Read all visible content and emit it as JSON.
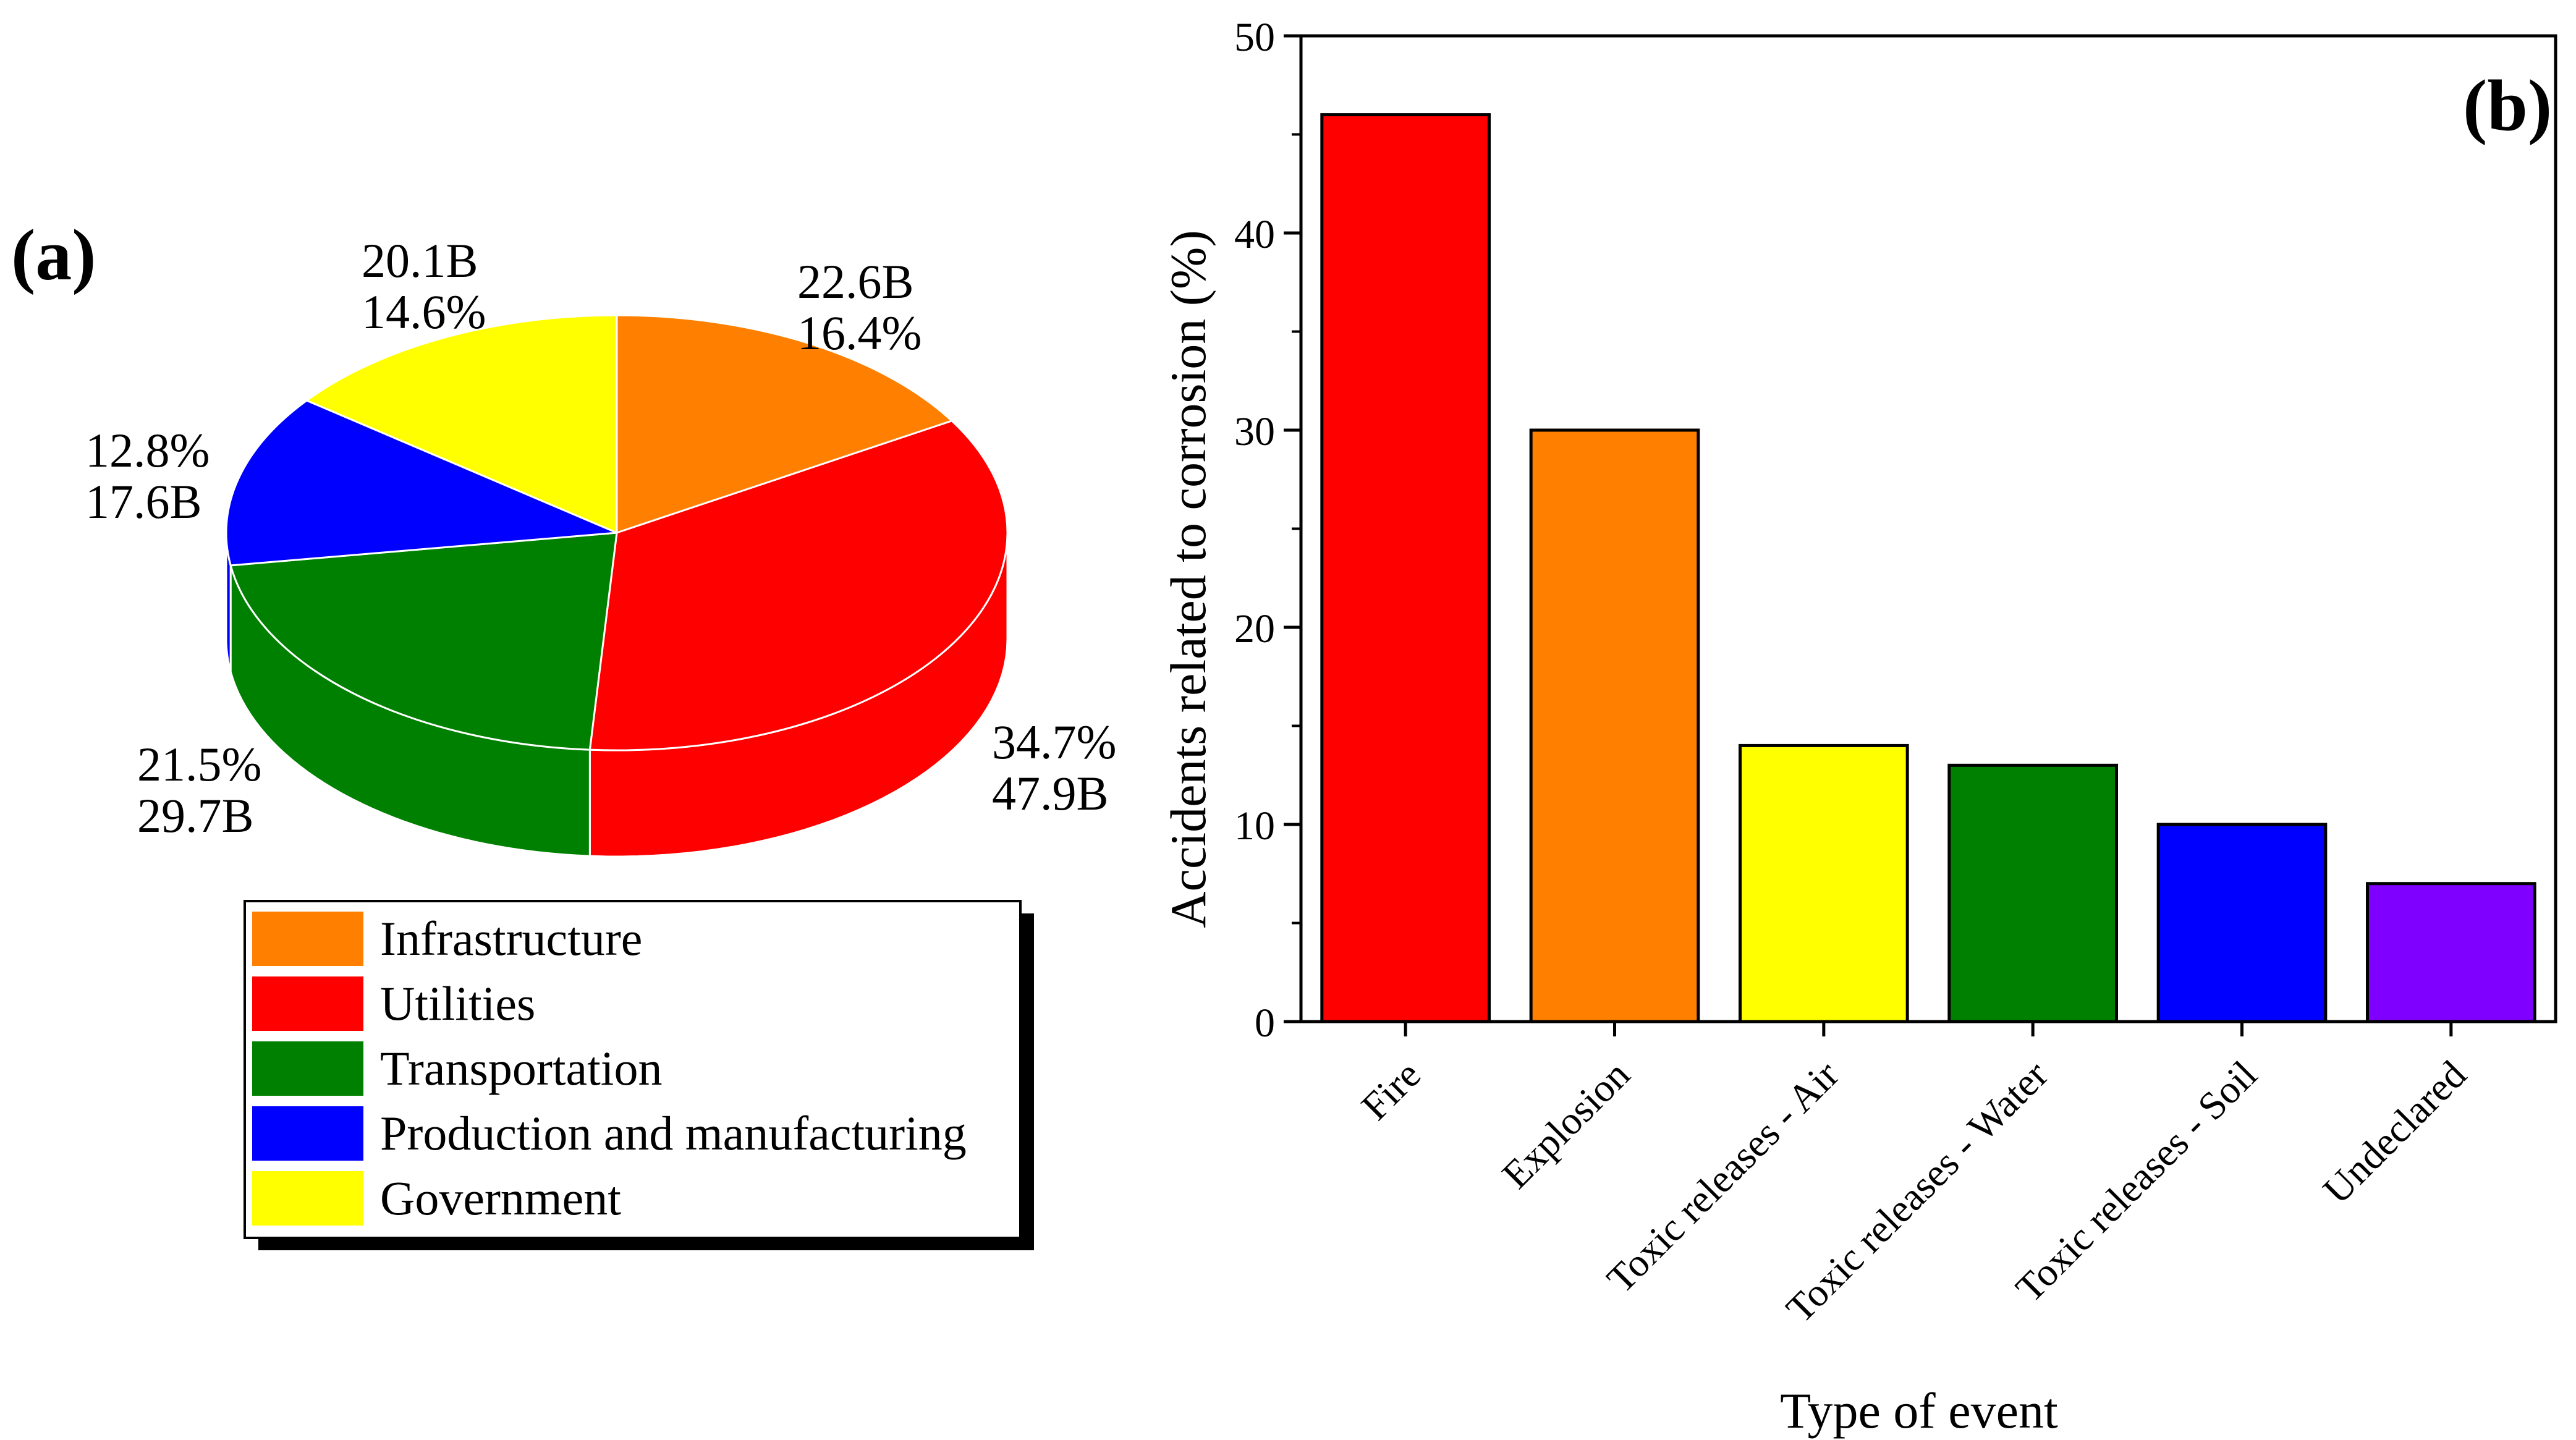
{
  "chart_data": [
    {
      "type": "pie",
      "panel_label": "(a)",
      "style": "3d",
      "slices": [
        {
          "label": "Infrastructure",
          "value_label": "22.6B",
          "percent_label": "16.4%",
          "value": 22.6,
          "percent": 16.4,
          "color": "#FF8000"
        },
        {
          "label": "Utilities",
          "value_label": "47.9B",
          "percent_label": "34.7%",
          "value": 47.9,
          "percent": 34.7,
          "color": "#FF0000"
        },
        {
          "label": "Transportation",
          "value_label": "29.7B",
          "percent_label": "21.5%",
          "value": 29.7,
          "percent": 21.5,
          "color": "#008000"
        },
        {
          "label": "Production and manufacturing",
          "value_label": "17.6B",
          "percent_label": "12.8%",
          "value": 17.6,
          "percent": 12.8,
          "color": "#0000FF"
        },
        {
          "label": "Government",
          "value_label": "20.1B",
          "percent_label": "14.6%",
          "value": 20.1,
          "percent": 14.6,
          "color": "#FFFF00"
        }
      ],
      "legend": [
        "Infrastructure",
        "Utilities",
        "Transportation",
        "Production and manufacturing",
        "Government"
      ],
      "legend_position": "bottom"
    },
    {
      "type": "bar",
      "panel_label": "(b)",
      "categories": [
        "Fire",
        "Explosion",
        "Toxic releases - Air",
        "Toxic releases - Water",
        "Toxic releases - Soil",
        "Undeclared"
      ],
      "values": [
        46,
        30,
        14,
        13,
        10,
        7
      ],
      "colors": [
        "#FF0000",
        "#FF8000",
        "#FFFF00",
        "#008000",
        "#0000FF",
        "#8000FF"
      ],
      "xlabel": "Type of event",
      "ylabel": "Accidents related to corrosion (%)",
      "ylim": [
        0,
        50
      ],
      "yticks": [
        0,
        10,
        20,
        30,
        40,
        50
      ],
      "grid": false
    }
  ]
}
